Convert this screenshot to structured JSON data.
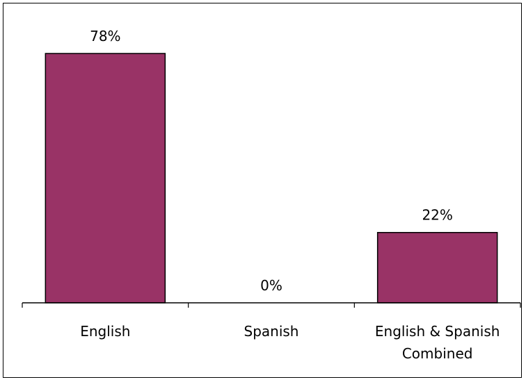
{
  "chart_data": {
    "type": "bar",
    "title": "",
    "xlabel": "",
    "ylabel": "",
    "categories": [
      [
        "English"
      ],
      [
        "Spanish"
      ],
      [
        "English & Spanish",
        "Combined"
      ]
    ],
    "values": [
      78,
      0,
      22
    ],
    "data_labels": [
      "78%",
      "0%",
      "22%"
    ],
    "unit": "%",
    "ylim": [
      0,
      78
    ],
    "grid": false,
    "legend": "none",
    "bar_color": "#993366",
    "bar_edge_color": "#000000"
  }
}
